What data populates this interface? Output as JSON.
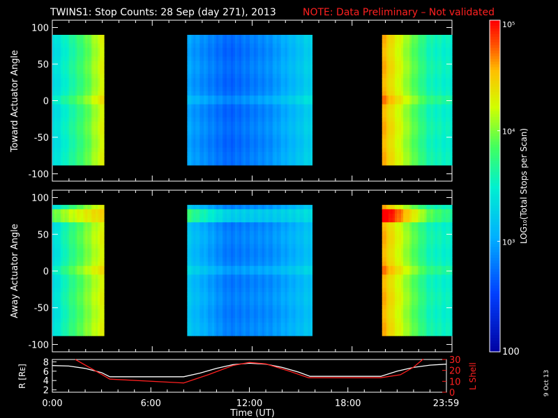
{
  "title": {
    "main": "TWINS1: Stop Counts: 28 Sep (day 271), 2013",
    "note": "NOTE: Data Preliminary – Not validated"
  },
  "date_stamp": "9 Oct 13",
  "colors": {
    "note": "#ff2020",
    "line_white": "#ffffff",
    "line_red": "#ff2020"
  },
  "colorbar": {
    "label": "LOG₁₀(Total Stops per Scan)",
    "scale": "log",
    "range": [
      100,
      100000
    ],
    "ticks": [
      {
        "v": 100000,
        "text": "10⁵"
      },
      {
        "v": 10000,
        "text": "10⁴"
      },
      {
        "v": 1000,
        "text": "10³"
      },
      {
        "v": 100,
        "text": "100"
      }
    ]
  },
  "chart_data": [
    {
      "type": "heatmap",
      "ylabel": "Toward Actuator Angle",
      "xlim": [
        0,
        24
      ],
      "ylim": [
        -110,
        110
      ],
      "yticks": [
        100,
        50,
        0,
        -50,
        -100
      ],
      "data_angle_range": [
        -88,
        90
      ],
      "segments": [
        {
          "start": 0.0,
          "end": 3.1,
          "levels": [
            3.3,
            3.6,
            3.9,
            4.3
          ]
        },
        {
          "start": 8.1,
          "end": 15.6,
          "levels": [
            3.0,
            2.7,
            2.9,
            3.3
          ]
        },
        {
          "start": 19.8,
          "end": 24.0,
          "levels": [
            4.6,
            4.1,
            3.6,
            3.5
          ]
        }
      ]
    },
    {
      "type": "heatmap",
      "ylabel": "Away Actuator Angle",
      "xlim": [
        0,
        24
      ],
      "ylim": [
        -110,
        110
      ],
      "yticks": [
        100,
        50,
        0,
        -50,
        -100
      ],
      "data_angle_range": [
        -88,
        90
      ],
      "segments": [
        {
          "start": 0.0,
          "end": 3.1,
          "levels": [
            3.3,
            3.7,
            4.0,
            4.3
          ]
        },
        {
          "start": 8.1,
          "end": 15.6,
          "levels": [
            3.2,
            2.8,
            2.9,
            3.2
          ]
        },
        {
          "start": 19.8,
          "end": 24.0,
          "levels": [
            4.6,
            4.1,
            3.6,
            3.5
          ]
        }
      ],
      "hotspot": {
        "angle_range": [
          65,
          85
        ],
        "boost": 0.6
      }
    },
    {
      "type": "line",
      "xlabel": "Time (UT)",
      "xlim": [
        0,
        24
      ],
      "xticks": [
        {
          "v": 0,
          "text": "0:00"
        },
        {
          "v": 6,
          "text": "6:00"
        },
        {
          "v": 12,
          "text": "12:00"
        },
        {
          "v": 18,
          "text": "18:00"
        },
        {
          "v": 23.98,
          "text": "23:59"
        }
      ],
      "left_axis": {
        "label": "R [Rᴇ]",
        "ylim": [
          1.5,
          8.5
        ],
        "ticks": [
          2,
          4,
          6,
          8
        ]
      },
      "right_axis": {
        "label": "L Shell",
        "ylim": [
          0,
          30
        ],
        "ticks": [
          0,
          10,
          20,
          30
        ]
      },
      "series": [
        {
          "axis": "left",
          "x": [
            0,
            1,
            2,
            3,
            3.5,
            8,
            9,
            10,
            11,
            12,
            13,
            14,
            15,
            15.7,
            20,
            21,
            22,
            23,
            24
          ],
          "values": [
            7.2,
            7.1,
            6.6,
            5.7,
            4.8,
            4.8,
            5.6,
            6.6,
            7.4,
            7.7,
            7.5,
            6.8,
            5.8,
            4.9,
            4.9,
            6.0,
            6.8,
            7.3,
            7.5
          ]
        },
        {
          "axis": "right",
          "x": [
            1.4,
            3.1,
            3.5,
            8.0,
            9.5,
            11.0,
            12.0,
            13.0,
            14.5,
            15.6,
            20.0,
            21.2,
            22.0,
            22.6
          ],
          "values": [
            30,
            15.5,
            12,
            8.5,
            16,
            24.5,
            27.3,
            26,
            19,
            13.3,
            13.3,
            16,
            23,
            30.5
          ]
        }
      ]
    }
  ]
}
